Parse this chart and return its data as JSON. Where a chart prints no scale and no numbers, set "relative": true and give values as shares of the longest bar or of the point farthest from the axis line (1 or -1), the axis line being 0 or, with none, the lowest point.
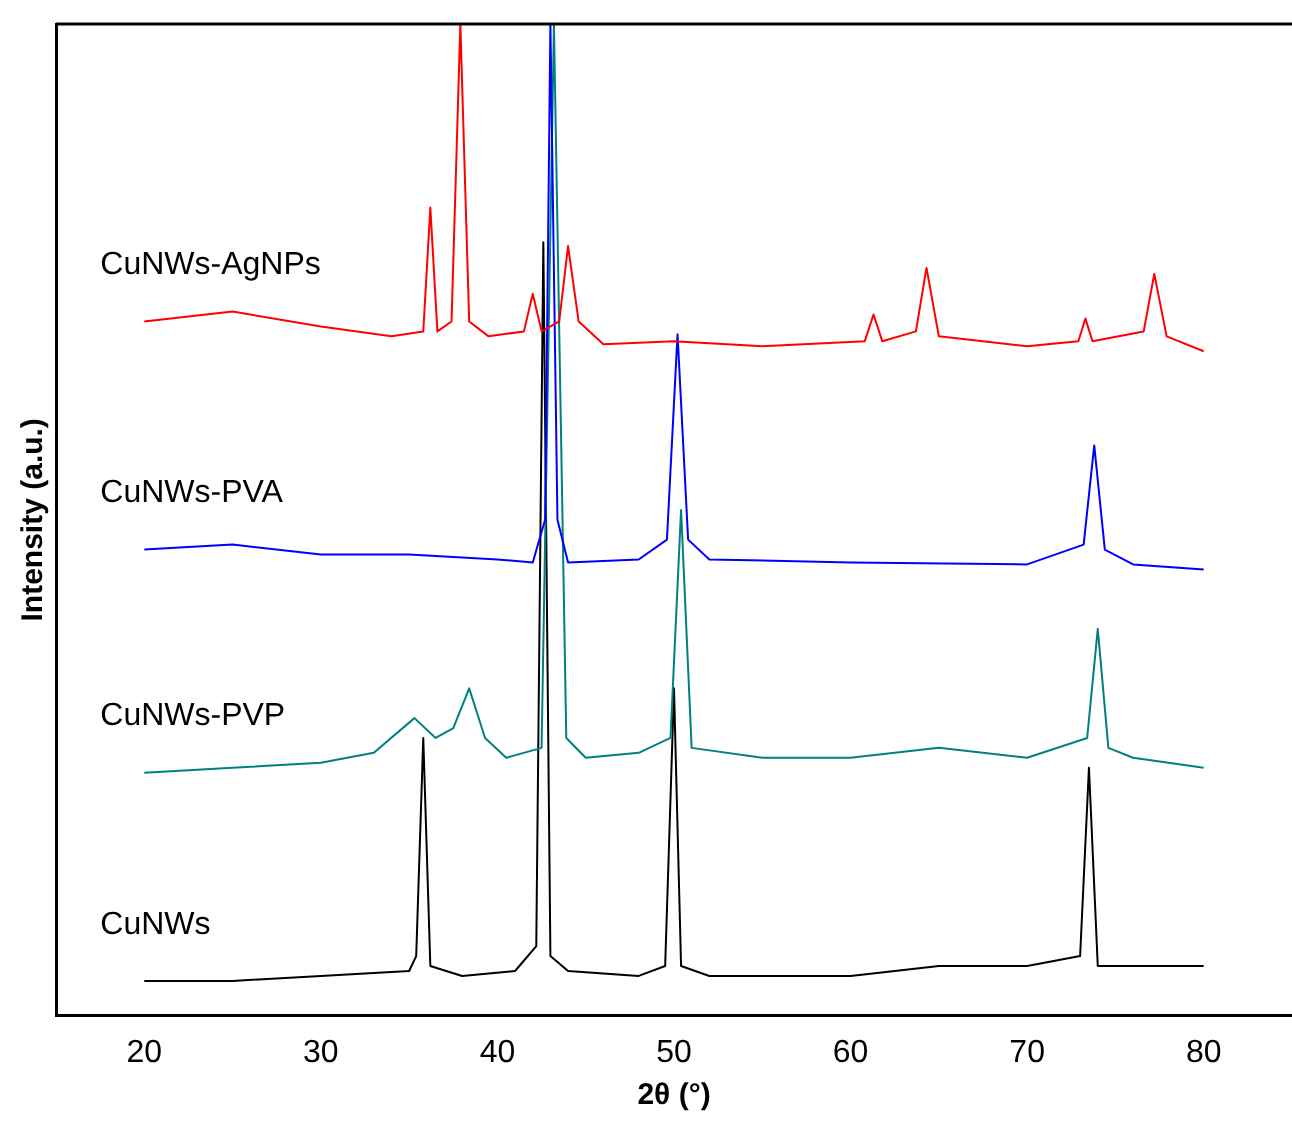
{
  "chart_data": {
    "type": "line",
    "relative": true,
    "xlabel": "2θ (°)",
    "ylabel": "Intensity (a.u.)",
    "xlim": [
      15,
      85
    ],
    "xticks": [
      20,
      30,
      40,
      50,
      60,
      70,
      80
    ],
    "legend": false,
    "grid": false,
    "marker": "none",
    "line_style": "solid",
    "series": [
      {
        "name": "CuNWs-AgNPs",
        "color": "#ff0000",
        "x": [
          20,
          25,
          30,
          34,
          35.8,
          36.2,
          36.6,
          37.4,
          37.9,
          38.4,
          39.5,
          41.5,
          42.0,
          42.5,
          43.5,
          44.0,
          44.6,
          46,
          50,
          55,
          60.8,
          61.3,
          61.8,
          63.7,
          64.3,
          65,
          70,
          72.9,
          73.3,
          73.7,
          76.6,
          77.2,
          77.9,
          80
        ],
        "values": [
          0.7,
          0.71,
          0.695,
          0.685,
          0.69,
          0.815,
          0.69,
          0.7,
          1.0,
          0.7,
          0.685,
          0.69,
          0.728,
          0.69,
          0.7,
          0.776,
          0.7,
          0.677,
          0.68,
          0.675,
          0.68,
          0.707,
          0.68,
          0.69,
          0.754,
          0.685,
          0.675,
          0.68,
          0.703,
          0.68,
          0.69,
          0.748,
          0.685,
          0.67
        ]
      },
      {
        "name": "CuNWs-PVA",
        "color": "#0000ff",
        "x": [
          20,
          25,
          30,
          35,
          40,
          42,
          42.7,
          43.0,
          43.4,
          44,
          48,
          49.6,
          50.2,
          50.8,
          52,
          60,
          70,
          73.2,
          73.8,
          74.4,
          76,
          80
        ],
        "values": [
          0.47,
          0.475,
          0.465,
          0.465,
          0.46,
          0.457,
          0.5,
          1.0,
          0.5,
          0.457,
          0.46,
          0.48,
          0.687,
          0.48,
          0.46,
          0.457,
          0.455,
          0.475,
          0.575,
          0.47,
          0.455,
          0.45
        ]
      },
      {
        "name": "CuNWs-PVP",
        "color": "#008080",
        "x": [
          20,
          25,
          30,
          33,
          35.3,
          36.5,
          37.5,
          38.4,
          39.3,
          40.5,
          42.5,
          43.2,
          43.9,
          45,
          48,
          49.8,
          50.4,
          51,
          55,
          60,
          65,
          70,
          73.4,
          74.0,
          74.6,
          76,
          80
        ],
        "values": [
          0.245,
          0.25,
          0.255,
          0.265,
          0.3,
          0.28,
          0.29,
          0.33,
          0.28,
          0.26,
          0.27,
          1.0,
          0.28,
          0.26,
          0.265,
          0.28,
          0.51,
          0.27,
          0.26,
          0.26,
          0.27,
          0.26,
          0.28,
          0.39,
          0.27,
          0.26,
          0.25
        ]
      },
      {
        "name": "CuNWs",
        "color": "#000000",
        "x": [
          20,
          25,
          30,
          35,
          35.4,
          35.8,
          36.2,
          38,
          41,
          42.2,
          42.6,
          43.0,
          44,
          48,
          49.5,
          50.0,
          50.4,
          52,
          60,
          65,
          70,
          73.0,
          73.5,
          74.0,
          76,
          80
        ],
        "values": [
          0.035,
          0.035,
          0.04,
          0.045,
          0.06,
          0.28,
          0.05,
          0.04,
          0.045,
          0.07,
          0.78,
          0.06,
          0.045,
          0.04,
          0.05,
          0.33,
          0.05,
          0.04,
          0.04,
          0.05,
          0.05,
          0.06,
          0.25,
          0.05,
          0.05,
          0.05
        ]
      }
    ]
  }
}
